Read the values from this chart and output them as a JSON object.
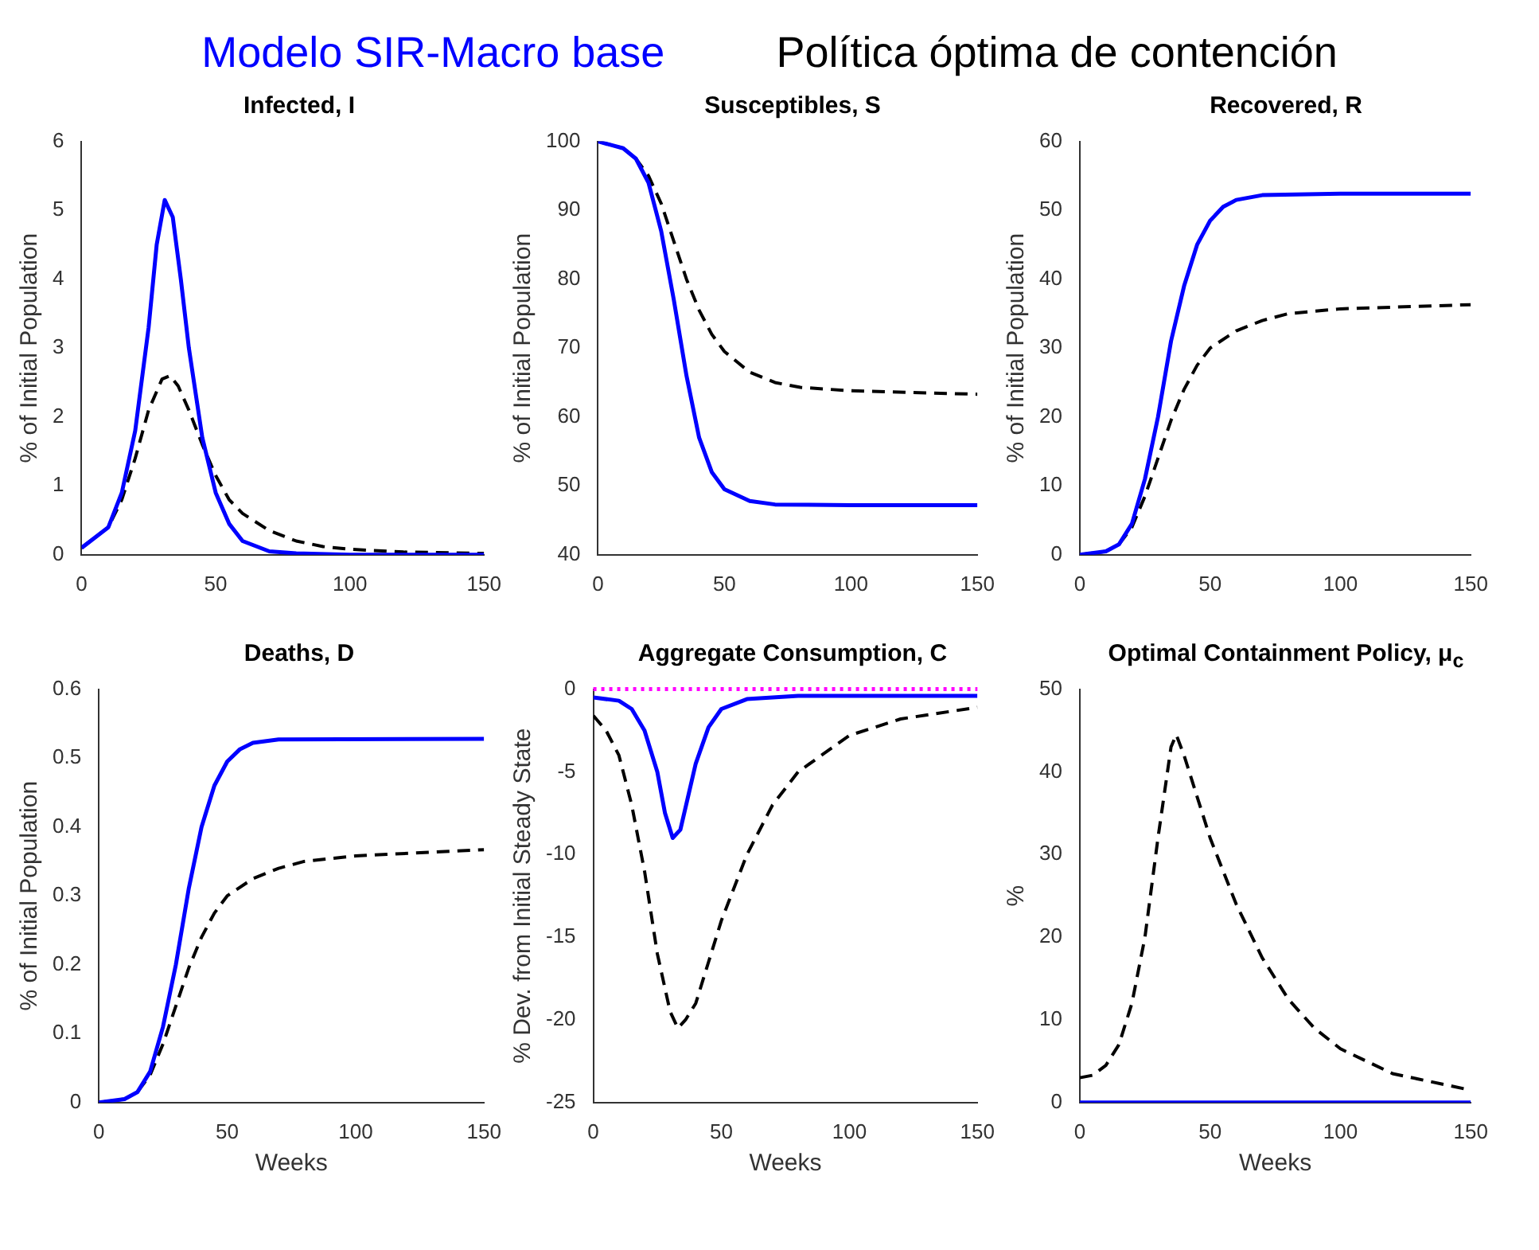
{
  "chart_data": [
    {
      "type": "line",
      "title": "Infected, I",
      "ylabel": "% of Initial Population",
      "xlim": [
        0,
        150
      ],
      "xticks": [
        0,
        50,
        100,
        150
      ],
      "ylim": [
        0,
        6
      ],
      "yticks": [
        0,
        1,
        2,
        3,
        4,
        5,
        6
      ],
      "grid": false,
      "marker": "none",
      "legend": "top",
      "series": [
        {
          "name": "Modelo SIR-Macro base",
          "color": "#0000ff",
          "line_style": "solid",
          "x": [
            0,
            10,
            15,
            20,
            25,
            28,
            31,
            34,
            37,
            40,
            45,
            50,
            55,
            60,
            70,
            80,
            100,
            150
          ],
          "values": [
            0.1,
            0.4,
            0.9,
            1.8,
            3.3,
            4.5,
            5.15,
            4.9,
            4.0,
            3.0,
            1.7,
            0.9,
            0.45,
            0.2,
            0.05,
            0.02,
            0,
            0
          ]
        },
        {
          "name": "Política óptima de contención",
          "color": "#000000",
          "line_style": "dashed",
          "x": [
            0,
            10,
            15,
            20,
            25,
            30,
            33,
            36,
            40,
            45,
            50,
            55,
            60,
            70,
            80,
            90,
            100,
            120,
            150
          ],
          "values": [
            0.1,
            0.4,
            0.8,
            1.4,
            2.1,
            2.55,
            2.6,
            2.45,
            2.1,
            1.6,
            1.15,
            0.8,
            0.6,
            0.35,
            0.2,
            0.12,
            0.08,
            0.04,
            0.02
          ]
        }
      ]
    },
    {
      "type": "line",
      "title": "Susceptibles, S",
      "ylabel": "% of Initial Population",
      "xlim": [
        0,
        150
      ],
      "xticks": [
        0,
        50,
        100,
        150
      ],
      "ylim": [
        40,
        100
      ],
      "yticks": [
        40,
        50,
        60,
        70,
        80,
        90,
        100
      ],
      "grid": false,
      "marker": "none",
      "series": [
        {
          "color": "#0000ff",
          "line_style": "solid",
          "x": [
            0,
            10,
            15,
            20,
            25,
            30,
            35,
            40,
            45,
            50,
            60,
            70,
            100,
            150
          ],
          "values": [
            100,
            99,
            97.5,
            94,
            87,
            77,
            66,
            57,
            52,
            49.5,
            47.8,
            47.3,
            47.2,
            47.2
          ]
        },
        {
          "color": "#000000",
          "line_style": "dashed",
          "x": [
            0,
            10,
            15,
            20,
            25,
            30,
            35,
            40,
            45,
            50,
            60,
            70,
            80,
            100,
            150
          ],
          "values": [
            100,
            99,
            97.5,
            95,
            91,
            85.5,
            80,
            75.5,
            72,
            69.5,
            66.5,
            65,
            64.3,
            63.8,
            63.3
          ]
        }
      ]
    },
    {
      "type": "line",
      "title": "Recovered, R",
      "ylabel": "% of Initial Population",
      "xlim": [
        0,
        150
      ],
      "xticks": [
        0,
        50,
        100,
        150
      ],
      "ylim": [
        0,
        60
      ],
      "yticks": [
        0,
        10,
        20,
        30,
        40,
        50,
        60
      ],
      "grid": false,
      "marker": "none",
      "series": [
        {
          "color": "#0000ff",
          "line_style": "solid",
          "x": [
            0,
            10,
            15,
            20,
            25,
            30,
            35,
            40,
            45,
            50,
            55,
            60,
            70,
            100,
            150
          ],
          "values": [
            0,
            0.5,
            1.5,
            4.5,
            11,
            20,
            31,
            39,
            45,
            48.5,
            50.5,
            51.5,
            52.2,
            52.4,
            52.4
          ]
        },
        {
          "color": "#000000",
          "line_style": "dashed",
          "x": [
            0,
            10,
            15,
            20,
            25,
            30,
            35,
            40,
            45,
            50,
            60,
            70,
            80,
            100,
            150
          ],
          "values": [
            0,
            0.5,
            1.5,
            4,
            8.5,
            14,
            19.5,
            24,
            27.5,
            30,
            32.5,
            34,
            35,
            35.7,
            36.3
          ]
        }
      ]
    },
    {
      "type": "line",
      "title": "Deaths, D",
      "ylabel": "% of Initial Population",
      "xlabel": "Weeks",
      "xlim": [
        0,
        150
      ],
      "xticks": [
        0,
        50,
        100,
        150
      ],
      "ylim": [
        0,
        0.6
      ],
      "yticks": [
        0,
        0.1,
        0.2,
        0.3,
        0.4,
        0.5,
        0.6
      ],
      "grid": false,
      "marker": "none",
      "series": [
        {
          "color": "#0000ff",
          "line_style": "solid",
          "x": [
            0,
            10,
            15,
            20,
            25,
            30,
            35,
            40,
            45,
            50,
            55,
            60,
            70,
            150
          ],
          "values": [
            0,
            0.005,
            0.015,
            0.045,
            0.11,
            0.2,
            0.31,
            0.4,
            0.46,
            0.495,
            0.513,
            0.522,
            0.527,
            0.528
          ]
        },
        {
          "color": "#000000",
          "line_style": "dashed",
          "x": [
            0,
            10,
            15,
            20,
            25,
            30,
            35,
            40,
            45,
            50,
            60,
            70,
            80,
            100,
            150
          ],
          "values": [
            0,
            0.005,
            0.015,
            0.04,
            0.085,
            0.14,
            0.195,
            0.24,
            0.275,
            0.3,
            0.325,
            0.34,
            0.35,
            0.358,
            0.367
          ]
        }
      ]
    },
    {
      "type": "line",
      "title": "Aggregate Consumption, C",
      "ylabel": "% Dev. from Initial Steady State",
      "xlabel": "Weeks",
      "xlim": [
        0,
        150
      ],
      "xticks": [
        0,
        50,
        100,
        150
      ],
      "ylim": [
        -25,
        0
      ],
      "yticks": [
        -25,
        -20,
        -15,
        -10,
        -5,
        0
      ],
      "grid": false,
      "marker": "none",
      "ref_lines": [
        {
          "axis": "y",
          "value": 0,
          "color": "#ff00ff",
          "line_style": "dotted"
        }
      ],
      "series": [
        {
          "color": "#0000ff",
          "line_style": "solid",
          "x": [
            0,
            10,
            15,
            20,
            25,
            28,
            31,
            34,
            37,
            40,
            45,
            50,
            60,
            80,
            150
          ],
          "values": [
            -0.5,
            -0.7,
            -1.2,
            -2.5,
            -5,
            -7.5,
            -9,
            -8.5,
            -6.5,
            -4.5,
            -2.3,
            -1.2,
            -0.6,
            -0.4,
            -0.4
          ]
        },
        {
          "color": "#000000",
          "line_style": "dashed",
          "x": [
            0,
            5,
            10,
            15,
            20,
            25,
            30,
            33,
            36,
            40,
            45,
            50,
            60,
            70,
            80,
            100,
            120,
            150
          ],
          "values": [
            -1.6,
            -2.5,
            -4,
            -7,
            -11,
            -16,
            -19.5,
            -20.5,
            -20,
            -19,
            -16.5,
            -14,
            -10,
            -7,
            -5,
            -2.8,
            -1.8,
            -1.1
          ]
        }
      ]
    },
    {
      "type": "line",
      "title": "Optimal Containment Policy, μ$_{c}$",
      "ylabel": "%",
      "xlabel": "Weeks",
      "xlim": [
        0,
        150
      ],
      "xticks": [
        0,
        50,
        100,
        150
      ],
      "ylim": [
        0,
        50
      ],
      "yticks": [
        0,
        10,
        20,
        30,
        40,
        50
      ],
      "grid": false,
      "marker": "none",
      "series": [
        {
          "color": "#0000ff",
          "line_style": "solid",
          "x": [
            0,
            150
          ],
          "values": [
            0,
            0
          ]
        },
        {
          "color": "#000000",
          "line_style": "dashed",
          "x": [
            0,
            5,
            10,
            15,
            20,
            25,
            30,
            35,
            37,
            40,
            45,
            50,
            60,
            70,
            80,
            90,
            100,
            120,
            150
          ],
          "values": [
            3,
            3.3,
            4.5,
            7,
            12,
            20,
            32,
            43,
            44.5,
            42,
            37,
            32,
            24,
            17.5,
            12.5,
            9,
            6.5,
            3.5,
            1.5
          ]
        }
      ]
    }
  ]
}
